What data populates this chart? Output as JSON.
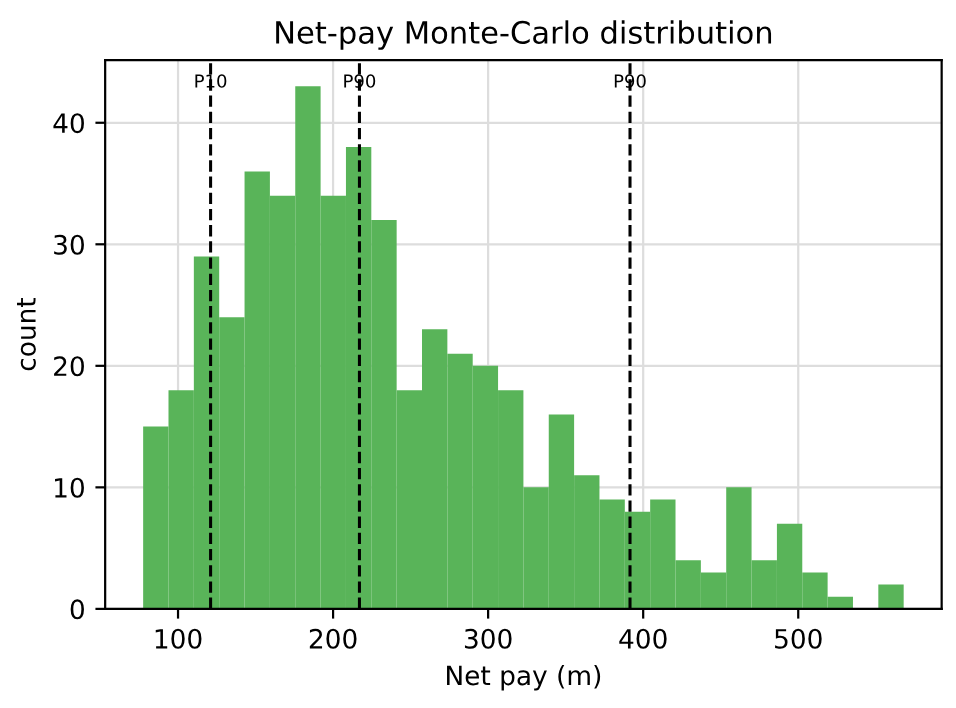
{
  "chart_data": {
    "type": "histogram",
    "title": "Net-pay Monte-Carlo distribution",
    "xlabel": "Net pay (m)",
    "ylabel": "count",
    "bins": [
      77.5,
      93.85,
      110.2,
      126.55,
      142.9,
      159.25,
      175.6,
      191.95,
      208.3,
      224.65,
      241.0,
      257.35,
      273.7,
      290.05,
      306.4,
      322.75,
      339.1,
      355.45,
      371.8,
      388.15,
      404.5,
      420.85,
      437.2,
      453.55,
      469.9,
      486.25,
      502.6,
      518.95,
      535.3,
      551.65,
      568.0
    ],
    "values": [
      15,
      18,
      29,
      24,
      36,
      34,
      43,
      34,
      38,
      32,
      18,
      23,
      21,
      20,
      18,
      10,
      16,
      11,
      9,
      8,
      9,
      4,
      3,
      10,
      4,
      7,
      3,
      1,
      0,
      2
    ],
    "color": "#59b459",
    "xlim": [
      53,
      592.5
    ],
    "ylim": [
      0,
      45.15
    ],
    "xticks": [
      100,
      200,
      300,
      400,
      500
    ],
    "yticks": [
      0,
      10,
      20,
      30,
      40
    ],
    "grid": true,
    "ref_lines": [
      {
        "axis": "x",
        "value": 121,
        "label": "P10",
        "color": "#000000",
        "line_style": "dashed"
      },
      {
        "axis": "x",
        "value": 217,
        "label": "P90",
        "color": "#000000",
        "line_style": "dashed"
      },
      {
        "axis": "x",
        "value": 391.5,
        "label": "P90",
        "color": "#000000",
        "line_style": "dashed"
      }
    ]
  }
}
